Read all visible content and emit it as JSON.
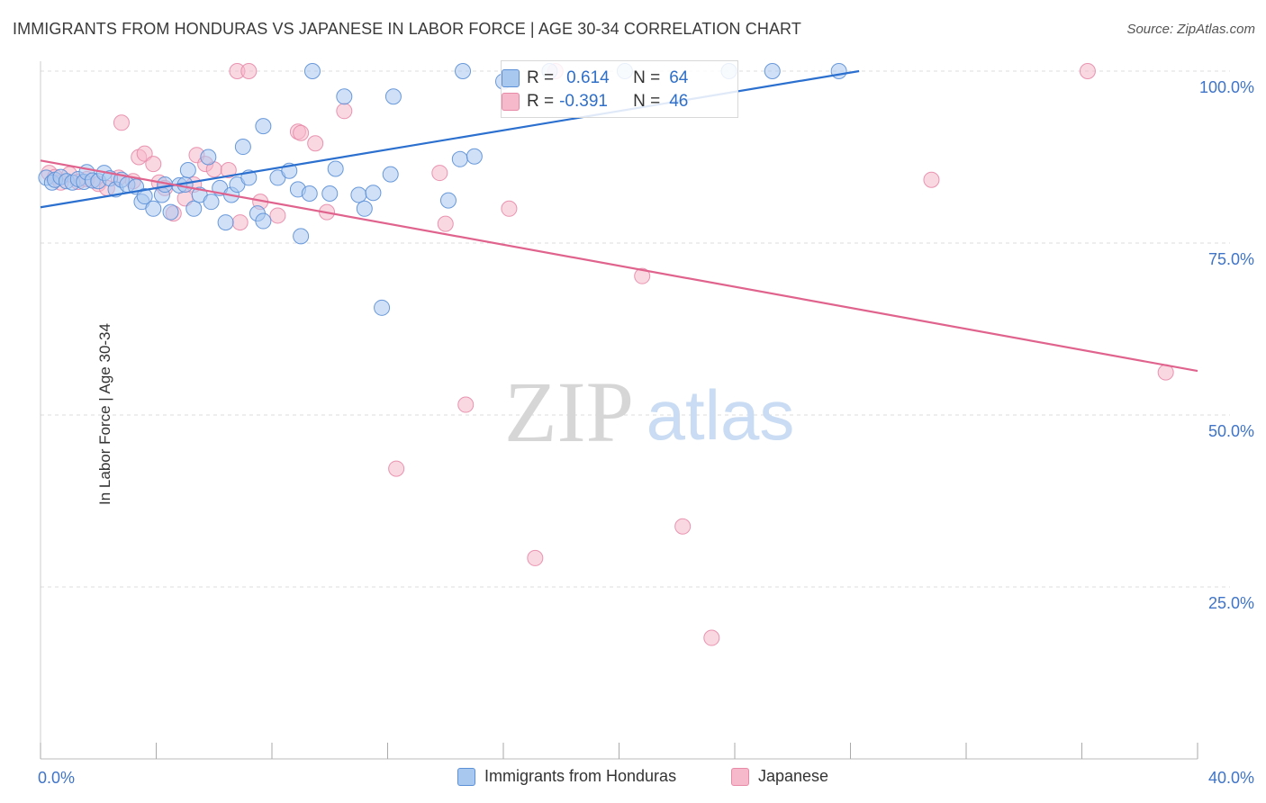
{
  "title": "IMMIGRANTS FROM HONDURAS VS JAPANESE IN LABOR FORCE | AGE 30-34 CORRELATION CHART",
  "source": "Source: ZipAtlas.com",
  "watermark": {
    "zip": "ZIP",
    "atlas": "atlas"
  },
  "colors": {
    "blue_fill": "#a9c8f0",
    "blue_stroke": "#5b8fd6",
    "blue_line": "#2b6fcf",
    "pink_fill": "#f6b8cb",
    "pink_stroke": "#e78aa8",
    "pink_line": "#e0638e",
    "axis_text": "#3f74c8",
    "grid": "#dcdcdc"
  },
  "stats": [
    {
      "r_label": "R =",
      "r_value": "0.614",
      "n_label": "N =",
      "n_value": "64",
      "series": "blue"
    },
    {
      "r_label": "R =",
      "r_value": "-0.391",
      "n_label": "N =",
      "n_value": "46",
      "series": "pink"
    }
  ],
  "legend": [
    {
      "label": "Immigrants from Honduras",
      "series": "blue"
    },
    {
      "label": "Japanese",
      "series": "pink"
    }
  ],
  "chart_data": {
    "type": "scatter",
    "title": "IMMIGRANTS FROM HONDURAS VS JAPANESE IN LABOR FORCE | AGE 30-34 CORRELATION CHART",
    "xlabel": "",
    "ylabel": "In Labor Force | Age 30-34",
    "xlim": [
      0,
      40
    ],
    "ylim": [
      0,
      100
    ],
    "x_ticks": [
      0,
      4,
      8,
      12,
      16,
      20,
      24,
      28,
      32,
      36,
      40
    ],
    "x_tick_labels": [
      {
        "value": 0,
        "label": "0.0%"
      },
      {
        "value": 40,
        "label": "40.0%"
      }
    ],
    "y_ticks": [
      {
        "value": 25,
        "label": "25.0%"
      },
      {
        "value": 50,
        "label": "50.0%"
      },
      {
        "value": 75,
        "label": "75.0%"
      },
      {
        "value": 100,
        "label": "100.0%"
      }
    ],
    "grid": true,
    "legend_position": "bottom",
    "series": [
      {
        "name": "Immigrants from Honduras",
        "color": "blue",
        "trend": {
          "x": [
            0,
            28.3
          ],
          "y": [
            80.2,
            100
          ]
        },
        "points": [
          [
            0.2,
            84.5
          ],
          [
            0.4,
            83.8
          ],
          [
            0.5,
            84.2
          ],
          [
            0.7,
            84.6
          ],
          [
            0.9,
            84.0
          ],
          [
            1.1,
            83.8
          ],
          [
            1.3,
            84.3
          ],
          [
            1.5,
            83.9
          ],
          [
            1.6,
            85.3
          ],
          [
            1.8,
            84.1
          ],
          [
            2.0,
            84.0
          ],
          [
            2.2,
            85.2
          ],
          [
            2.4,
            84.4
          ],
          [
            2.6,
            82.8
          ],
          [
            2.8,
            84.2
          ],
          [
            3.0,
            83.5
          ],
          [
            3.3,
            83.2
          ],
          [
            3.5,
            81.0
          ],
          [
            3.6,
            81.8
          ],
          [
            3.9,
            80.0
          ],
          [
            4.2,
            82.0
          ],
          [
            4.3,
            83.5
          ],
          [
            4.5,
            79.5
          ],
          [
            4.8,
            83.4
          ],
          [
            5.0,
            83.5
          ],
          [
            5.1,
            85.6
          ],
          [
            5.3,
            80.0
          ],
          [
            5.5,
            82.0
          ],
          [
            5.8,
            87.5
          ],
          [
            5.9,
            81.0
          ],
          [
            6.2,
            83.0
          ],
          [
            6.4,
            78.0
          ],
          [
            6.6,
            82.0
          ],
          [
            6.8,
            83.5
          ],
          [
            7.0,
            89.0
          ],
          [
            7.2,
            84.5
          ],
          [
            7.5,
            79.3
          ],
          [
            7.7,
            78.2
          ],
          [
            7.7,
            92.0
          ],
          [
            8.2,
            84.5
          ],
          [
            8.6,
            85.5
          ],
          [
            8.9,
            82.8
          ],
          [
            9.0,
            76.0
          ],
          [
            9.3,
            82.2
          ],
          [
            9.4,
            100
          ],
          [
            10.0,
            82.2
          ],
          [
            10.2,
            85.8
          ],
          [
            10.5,
            96.3
          ],
          [
            11.0,
            82.0
          ],
          [
            11.2,
            80.0
          ],
          [
            11.5,
            82.3
          ],
          [
            11.8,
            65.6
          ],
          [
            12.1,
            85.0
          ],
          [
            12.2,
            96.3
          ],
          [
            14.1,
            81.2
          ],
          [
            14.5,
            87.2
          ],
          [
            14.6,
            100
          ],
          [
            15.0,
            87.6
          ],
          [
            16.0,
            98.5
          ],
          [
            17.6,
            100
          ],
          [
            20.2,
            100
          ],
          [
            23.8,
            100
          ],
          [
            25.3,
            100
          ],
          [
            27.6,
            100
          ]
        ]
      },
      {
        "name": "Japanese",
        "color": "pink",
        "trend": {
          "x": [
            0,
            40
          ],
          "y": [
            87,
            56.4
          ]
        },
        "points": [
          [
            0.3,
            85.2
          ],
          [
            0.5,
            84.6
          ],
          [
            0.7,
            83.8
          ],
          [
            1.0,
            85.0
          ],
          [
            1.3,
            83.9
          ],
          [
            1.6,
            84.3
          ],
          [
            2.0,
            83.6
          ],
          [
            2.3,
            83.0
          ],
          [
            2.7,
            84.5
          ],
          [
            2.8,
            92.5
          ],
          [
            3.2,
            84.0
          ],
          [
            3.4,
            87.5
          ],
          [
            3.6,
            88.0
          ],
          [
            3.9,
            86.5
          ],
          [
            4.1,
            83.8
          ],
          [
            4.3,
            83.0
          ],
          [
            4.6,
            79.3
          ],
          [
            5.0,
            81.5
          ],
          [
            5.3,
            83.5
          ],
          [
            5.4,
            87.8
          ],
          [
            5.7,
            86.5
          ],
          [
            6.0,
            85.7
          ],
          [
            6.5,
            85.6
          ],
          [
            6.8,
            100
          ],
          [
            6.9,
            78.0
          ],
          [
            7.2,
            100
          ],
          [
            7.6,
            81.0
          ],
          [
            8.2,
            79.0
          ],
          [
            8.9,
            91.2
          ],
          [
            9.0,
            91.0
          ],
          [
            9.5,
            89.5
          ],
          [
            9.9,
            79.5
          ],
          [
            10.5,
            94.2
          ],
          [
            13.8,
            85.2
          ],
          [
            14.0,
            77.8
          ],
          [
            14.7,
            51.5
          ],
          [
            12.3,
            42.2
          ],
          [
            16.2,
            80.0
          ],
          [
            17.1,
            29.2
          ],
          [
            17.8,
            100
          ],
          [
            20.8,
            70.2
          ],
          [
            22.2,
            33.8
          ],
          [
            23.2,
            17.6
          ],
          [
            30.8,
            84.2
          ],
          [
            36.2,
            100
          ],
          [
            38.9,
            56.2
          ]
        ]
      }
    ]
  }
}
